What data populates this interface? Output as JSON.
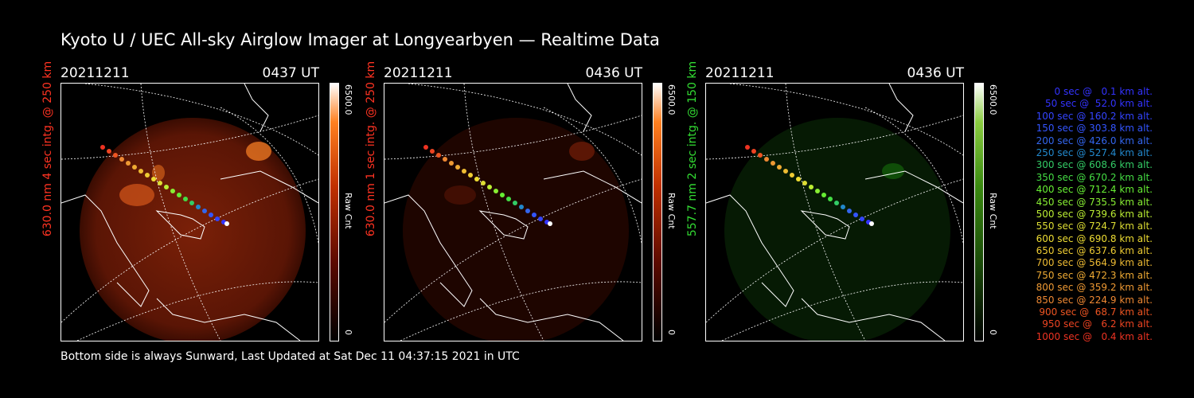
{
  "title": "Kyoto U / UEC All-sky Airglow Imager at Longyearbyen — Realtime Data",
  "footer": "Bottom side is always Sunward, Last Updated at Sat Dec 11 04:37:15 2021 in UTC",
  "panels": [
    {
      "date": "20211211",
      "time": "0437 UT",
      "label": "630.0 nm 4 sec intg. @ 250 km",
      "label_color": "#ff3322",
      "colorbar_max": "6500.0",
      "colorbar_unit": "Raw Cnt",
      "colorbar_min": "0",
      "tint": "#ff3300",
      "intensity": 0.55
    },
    {
      "date": "20211211",
      "time": "0436 UT",
      "label": "630.0 nm 1 sec intg. @ 250 km",
      "label_color": "#ff3322",
      "colorbar_max": "6500.0",
      "colorbar_unit": "Raw Cnt",
      "colorbar_min": "0",
      "tint": "#ff3300",
      "intensity": 0.18
    },
    {
      "date": "20211211",
      "time": "0436 UT",
      "label": "557.7 nm 2 sec intg. @ 150 km",
      "label_color": "#33dd33",
      "colorbar_max": "6500.0",
      "colorbar_unit": "Raw Cnt",
      "colorbar_min": "0",
      "tint": "#33cc22",
      "intensity": 0.1
    }
  ],
  "legend": [
    {
      "text": "0 sec @   0.1 km alt.",
      "color": "#3333ff"
    },
    {
      "text": "50 sec @  52.0 km alt.",
      "color": "#3333ff"
    },
    {
      "text": "100 sec @ 160.2 km alt.",
      "color": "#3344ff"
    },
    {
      "text": "150 sec @ 303.8 km alt.",
      "color": "#3355ff"
    },
    {
      "text": "200 sec @ 426.0 km alt.",
      "color": "#3366ee"
    },
    {
      "text": "250 sec @ 527.4 km alt.",
      "color": "#2288cc"
    },
    {
      "text": "300 sec @ 608.6 km alt.",
      "color": "#33cc66"
    },
    {
      "text": "350 sec @ 670.2 km alt.",
      "color": "#44dd44"
    },
    {
      "text": "400 sec @ 712.4 km alt.",
      "color": "#66ee33"
    },
    {
      "text": "450 sec @ 735.5 km alt.",
      "color": "#88ee33"
    },
    {
      "text": "500 sec @ 739.6 km alt.",
      "color": "#bbee33"
    },
    {
      "text": "550 sec @ 724.7 km alt.",
      "color": "#dddd33"
    },
    {
      "text": "600 sec @ 690.8 km alt.",
      "color": "#eedd33"
    },
    {
      "text": "650 sec @ 637.6 km alt.",
      "color": "#eecc33"
    },
    {
      "text": "700 sec @ 564.9 km alt.",
      "color": "#eebb33"
    },
    {
      "text": "750 sec @ 472.3 km alt.",
      "color": "#eeaa33"
    },
    {
      "text": "800 sec @ 359.2 km alt.",
      "color": "#ee9933"
    },
    {
      "text": "850 sec @ 224.9 km alt.",
      "color": "#ee8833"
    },
    {
      "text": "900 sec @  68.7 km alt.",
      "color": "#ee5522"
    },
    {
      "text": "950 sec @   6.2 km alt.",
      "color": "#ee4422"
    },
    {
      "text": "1000 sec @   0.4 km alt.",
      "color": "#ee3322"
    }
  ]
}
